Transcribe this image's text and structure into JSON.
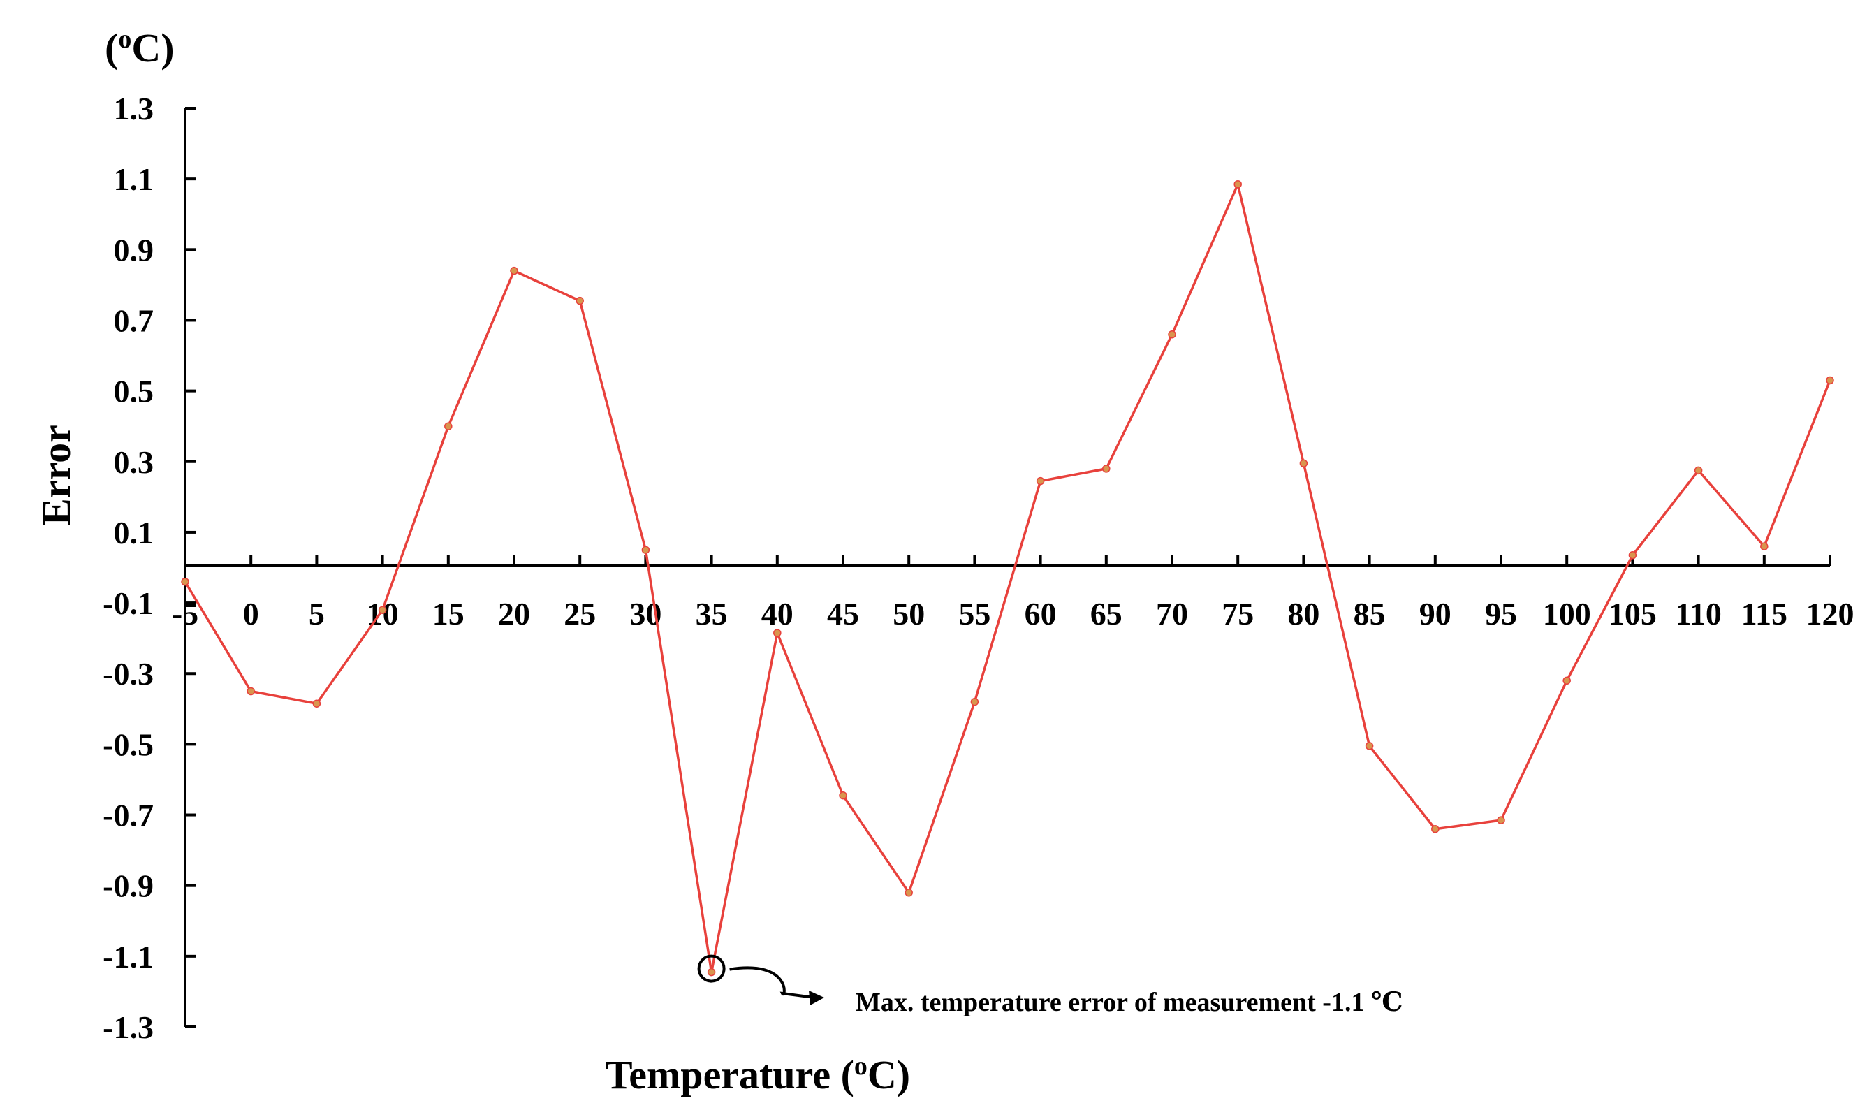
{
  "chart_data": {
    "type": "line",
    "title": "",
    "xlabel": "Temperature",
    "xlabel_unit": "(oC)",
    "ylabel": "Error",
    "y_unit_label": "(oC)",
    "ylim": [
      -1.3,
      1.3
    ],
    "yticks": [
      "1.3",
      "1.1",
      "0.9",
      "0.7",
      "0.5",
      "0.3",
      "0.1",
      "-0.1",
      "-0.3",
      "-0.5",
      "-0.7",
      "-0.9",
      "-1.1",
      "-1.3"
    ],
    "ytick_values": [
      1.3,
      1.1,
      0.9,
      0.7,
      0.5,
      0.3,
      0.1,
      -0.1,
      -0.3,
      -0.5,
      -0.7,
      -0.9,
      -1.1,
      -1.3
    ],
    "categories": [
      "-5",
      "0",
      "5",
      "10",
      "15",
      "20",
      "25",
      "30",
      "35",
      "40",
      "45",
      "50",
      "55",
      "60",
      "65",
      "70",
      "75",
      "80",
      "85",
      "90",
      "95",
      "100",
      "105",
      "110",
      "115",
      "120"
    ],
    "series": [
      {
        "values": [
          -0.04,
          -0.35,
          -0.385,
          -0.12,
          0.4,
          0.84,
          0.755,
          0.05,
          -1.145,
          -0.185,
          -0.645,
          -0.92,
          -0.38,
          0.245,
          0.28,
          0.66,
          1.085,
          0.295,
          -0.505,
          -0.74,
          -0.715,
          -0.32,
          0.035,
          0.275,
          0.06,
          0.53
        ],
        "color": "#e8413c"
      }
    ],
    "grid": false,
    "legend": "none",
    "annotation": {
      "text": "Max. temperature error of measurement -1.1 ℃",
      "target_index": 8
    },
    "colors": {
      "axis": "#000000",
      "line": "#e8413c",
      "marker": "#d9954e"
    }
  }
}
